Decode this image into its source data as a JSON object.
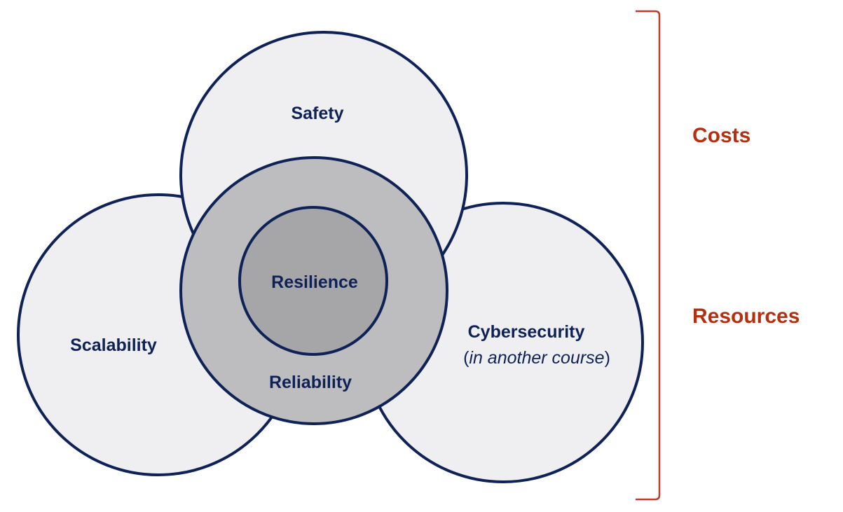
{
  "nodes": [
    {
      "label": "Safety"
    },
    {
      "label": "Scalability"
    },
    {
      "label": "Cybersecurity",
      "note_parts": [
        "(",
        "in another course",
        ")"
      ]
    },
    {
      "label": "Reliability"
    },
    {
      "label": "Resilience"
    }
  ],
  "side_labels": [
    "Costs",
    "Resources"
  ]
}
